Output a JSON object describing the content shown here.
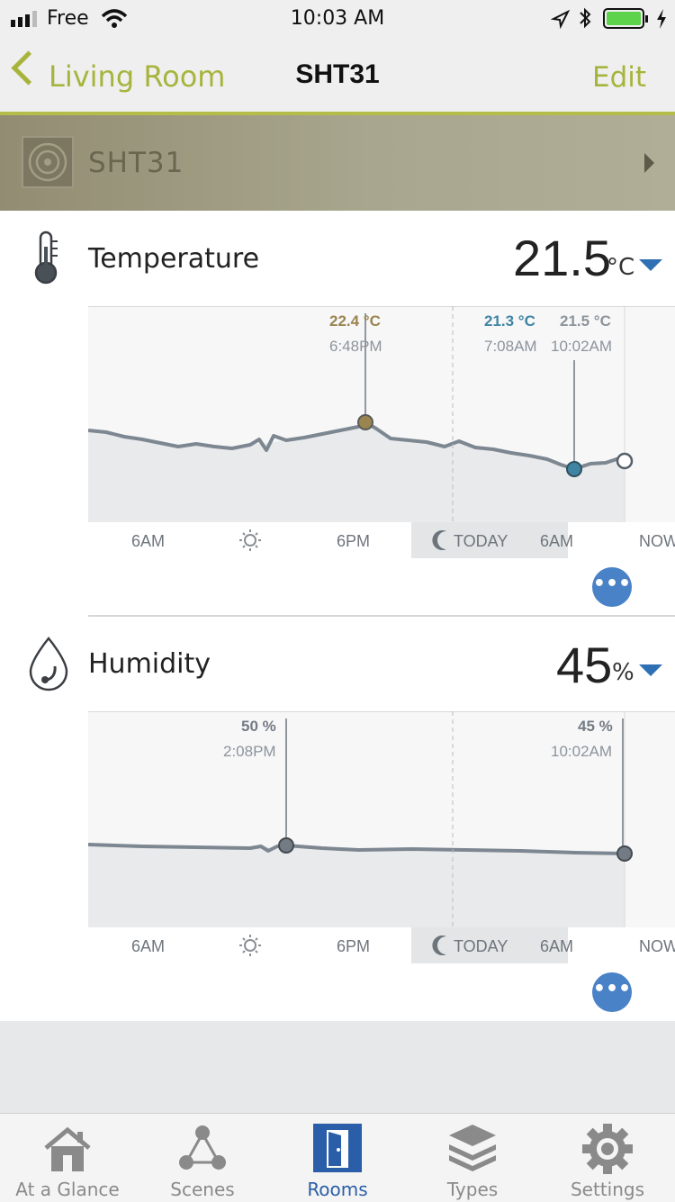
{
  "status_bar": {
    "carrier": "Free",
    "time": "10:03 AM"
  },
  "nav": {
    "back_label": "Living Room",
    "title": "SHT31",
    "edit_label": "Edit"
  },
  "device": {
    "name": "SHT31"
  },
  "temperature": {
    "label": "Temperature",
    "value": "21.5",
    "unit": "°C",
    "markers": [
      {
        "value": "22.4 °C",
        "time": "6:48PM",
        "color": "#9a8550"
      },
      {
        "value": "21.3 °C",
        "time": "7:08AM",
        "color": "#3f84a3"
      },
      {
        "value": "21.5 °C",
        "time": "10:02AM",
        "color": "#8c949c"
      }
    ],
    "axis": {
      "t1": "6AM",
      "t2": "6PM",
      "t3": "TODAY",
      "t4": "6AM",
      "t5": "NOW"
    }
  },
  "humidity": {
    "label": "Humidity",
    "value": "45",
    "unit": "%",
    "markers": [
      {
        "value": "50 %",
        "time": "2:08PM",
        "color": "#737b84"
      },
      {
        "value": "45 %",
        "time": "10:02AM",
        "color": "#737b84"
      }
    ],
    "axis": {
      "t1": "6AM",
      "t2": "6PM",
      "t3": "TODAY",
      "t4": "6AM",
      "t5": "NOW"
    }
  },
  "more_glyph": "•••",
  "tabs": [
    {
      "label": "At a Glance",
      "icon": "house-icon"
    },
    {
      "label": "Scenes",
      "icon": "scenes-icon"
    },
    {
      "label": "Rooms",
      "icon": "door-icon"
    },
    {
      "label": "Types",
      "icon": "layers-icon"
    },
    {
      "label": "Settings",
      "icon": "gear-icon"
    }
  ],
  "colors": {
    "accent": "#a7b43c",
    "active_tab": "#2a5ea8",
    "line": "#7d8791"
  }
}
